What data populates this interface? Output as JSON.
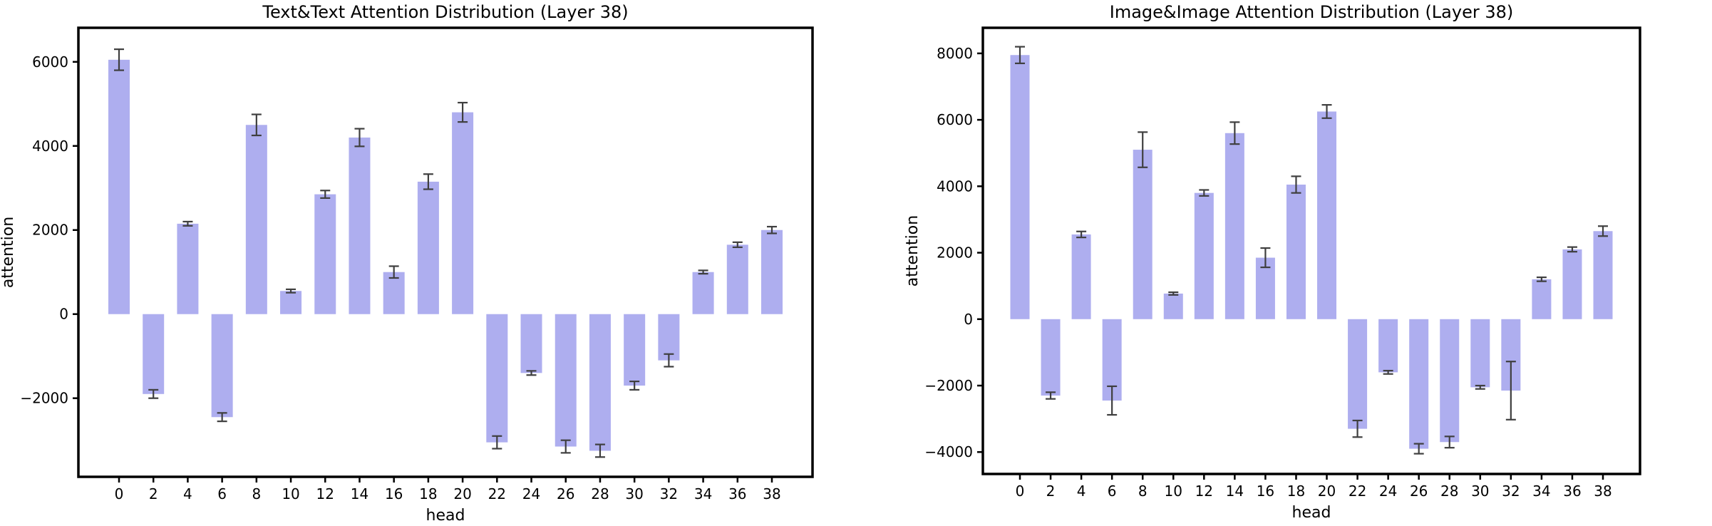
{
  "chart_data": [
    {
      "type": "bar",
      "title": "Text&Text Attention Distribution (Layer 38)",
      "xlabel": "head",
      "ylabel": "attention",
      "categories": [
        0,
        2,
        4,
        6,
        8,
        10,
        12,
        14,
        16,
        18,
        20,
        22,
        24,
        26,
        28,
        30,
        32,
        34,
        36,
        38
      ],
      "xtick_labels": [
        "0",
        "2",
        "4",
        "6",
        "8",
        "10",
        "12",
        "14",
        "16",
        "18",
        "20",
        "22",
        "24",
        "26",
        "28",
        "30",
        "32",
        "34",
        "36",
        "38"
      ],
      "values": [
        6050,
        -1900,
        2150,
        -2450,
        4500,
        550,
        2850,
        4200,
        1000,
        3150,
        4800,
        -3050,
        -1400,
        -3150,
        -3250,
        -1700,
        -1100,
        1000,
        1650,
        2000
      ],
      "errors": [
        250,
        100,
        50,
        100,
        250,
        40,
        90,
        210,
        140,
        180,
        230,
        150,
        50,
        150,
        150,
        100,
        150,
        40,
        60,
        80
      ],
      "yticks": [
        -2000,
        0,
        2000,
        4000,
        6000
      ],
      "ytick_labels": [
        "−2000",
        "0",
        "2000",
        "4000",
        "6000"
      ],
      "ylim": [
        -3870,
        6810
      ],
      "grid": false,
      "legend_position": "none",
      "bar_color": "#aeaeef",
      "error_color": "#3f3f3f",
      "spine_color": "#000000"
    },
    {
      "type": "bar",
      "title": "Image&Image Attention Distribution (Layer 38)",
      "xlabel": "head",
      "ylabel": "attention",
      "categories": [
        0,
        2,
        4,
        6,
        8,
        10,
        12,
        14,
        16,
        18,
        20,
        22,
        24,
        26,
        28,
        30,
        32,
        34,
        36,
        38
      ],
      "xtick_labels": [
        "0",
        "2",
        "4",
        "6",
        "8",
        "10",
        "12",
        "14",
        "16",
        "18",
        "20",
        "22",
        "24",
        "26",
        "28",
        "30",
        "32",
        "34",
        "36",
        "38"
      ],
      "values": [
        7950,
        -2300,
        2550,
        -2450,
        5100,
        770,
        3800,
        5600,
        1850,
        4050,
        6250,
        -3300,
        -1600,
        -3900,
        -3700,
        -2050,
        -2150,
        1200,
        2100,
        2650
      ],
      "errors": [
        250,
        100,
        90,
        430,
        530,
        40,
        90,
        330,
        290,
        250,
        200,
        250,
        50,
        150,
        170,
        50,
        875,
        60,
        70,
        150
      ],
      "yticks": [
        -4000,
        -2000,
        0,
        2000,
        4000,
        6000,
        8000
      ],
      "ytick_labels": [
        "−4000",
        "−2000",
        "0",
        "2000",
        "4000",
        "6000",
        "8000"
      ],
      "ylim": [
        -4660,
        8770
      ],
      "grid": false,
      "legend_position": "none",
      "bar_color": "#aeaeef",
      "error_color": "#3f3f3f",
      "spine_color": "#000000"
    }
  ]
}
